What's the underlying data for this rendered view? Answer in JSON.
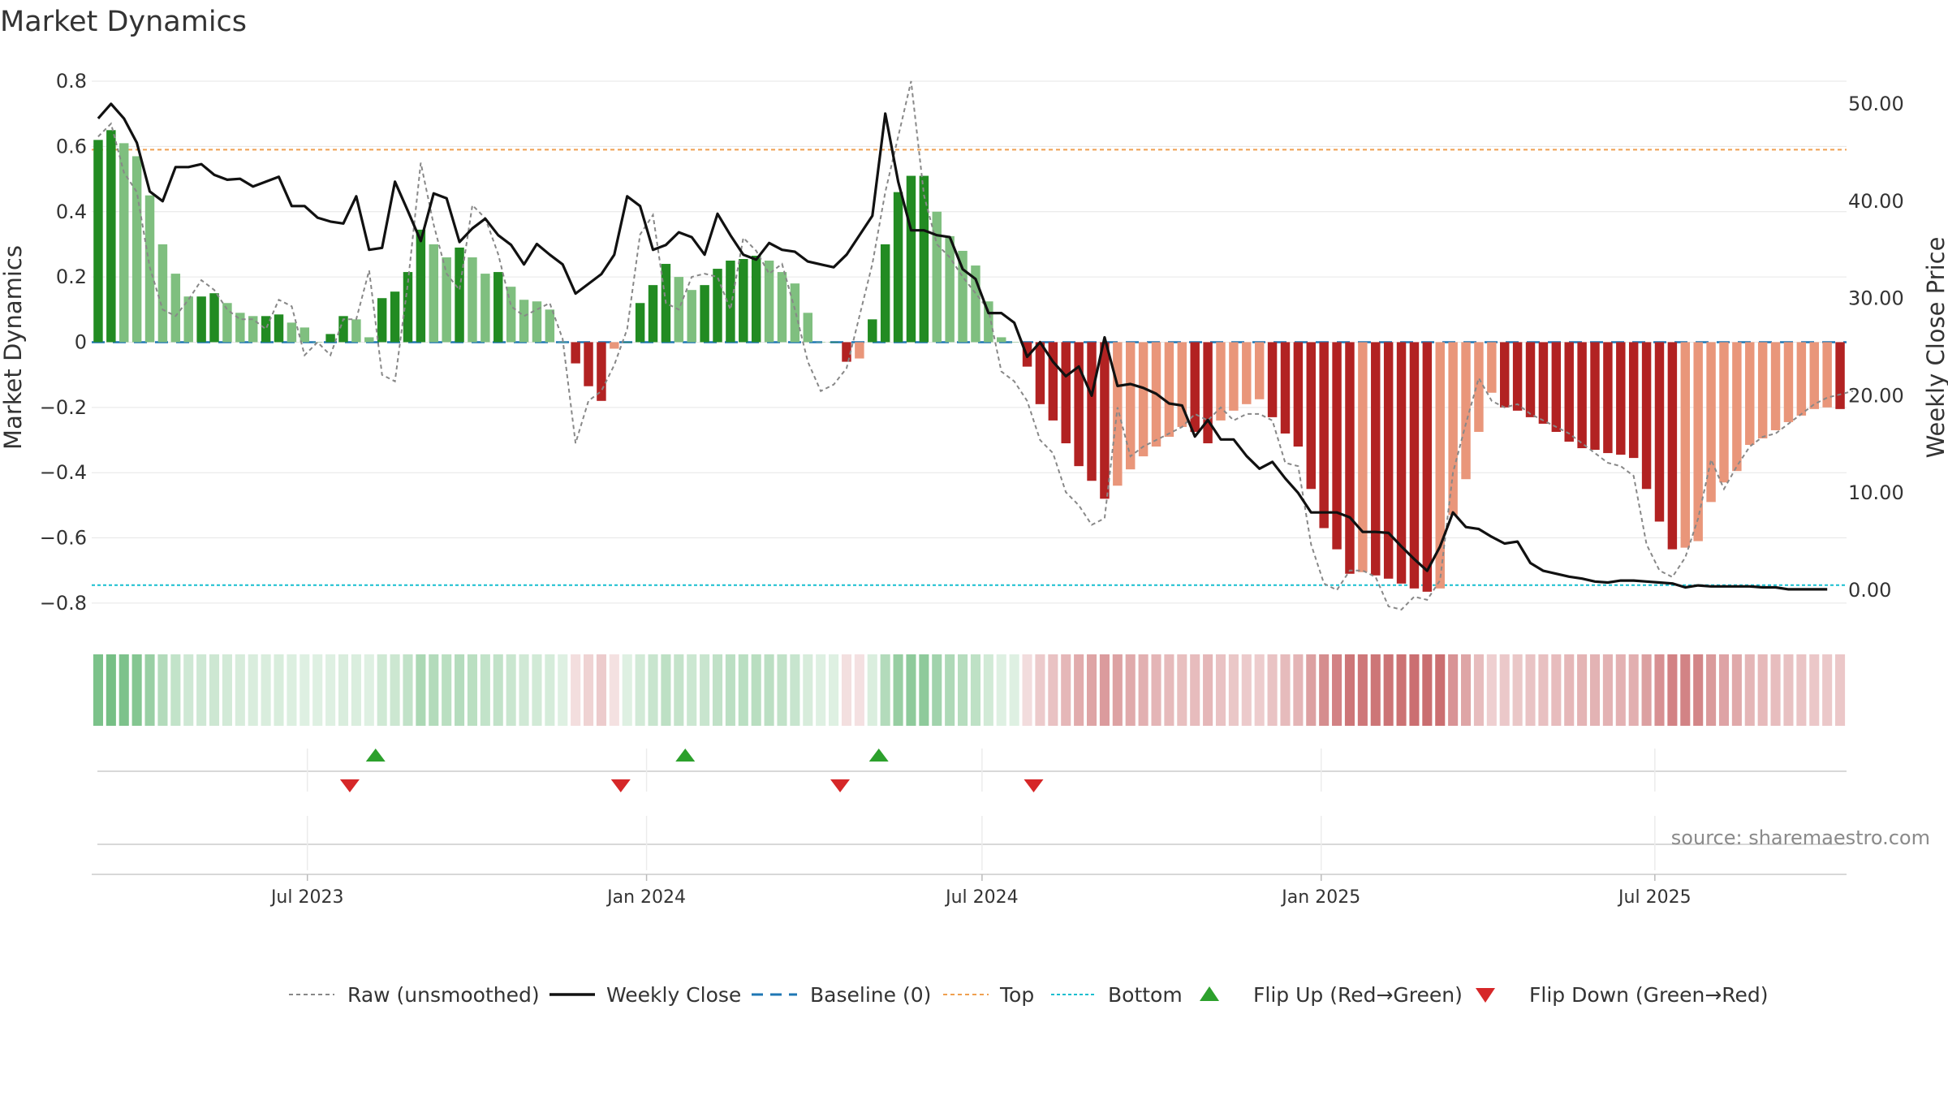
{
  "chart_data": {
    "type": "bar",
    "title": "Market Dynamics",
    "ylabel_left": "Market Dynamics",
    "ylabel_right": "Weekly Close Price",
    "y_left_lim": [
      -0.85,
      0.82
    ],
    "y_left_ticks": [
      "0.8",
      "0.6",
      "0.4",
      "0.2",
      "0",
      "−0.2",
      "−0.4",
      "−0.6",
      "−0.8"
    ],
    "y_left_tick_values": [
      0.8,
      0.6,
      0.4,
      0.2,
      0,
      -0.2,
      -0.4,
      -0.6,
      -0.8
    ],
    "y_right_lim": [
      -3,
      53
    ],
    "y_right_ticks": [
      "50.00",
      "40.00",
      "30.00",
      "20.00",
      "10.00",
      "0.00"
    ],
    "y_right_tick_values": [
      50,
      40,
      30,
      20,
      10,
      0
    ],
    "x_start": "2023-03-06",
    "x_end": "2025-10-13",
    "x_ticks": [
      "Jul 2023",
      "Jan 2024",
      "Jul 2024",
      "Jan 2025",
      "Jul 2025"
    ],
    "x_tick_dates": [
      "2023-07-01",
      "2024-01-01",
      "2024-07-01",
      "2025-01-01",
      "2025-07-01"
    ],
    "top_line": 0.59,
    "bottom_line": -0.745,
    "baseline": 0,
    "grid": true,
    "legend_position": "bottom",
    "source": "source: sharemaestro.com",
    "colors": {
      "strong_green": "#228b22",
      "light_green": "#7fbf7f",
      "strong_red": "#b22222",
      "light_red": "#e9967a",
      "weekly_close": "#111111",
      "raw": "#888888",
      "baseline": "#1f77b4",
      "top": "#f0a050",
      "bottom": "#17becf",
      "flip_up": "#2ca02c",
      "flip_down": "#d62728"
    },
    "market_dynamics": [
      0.62,
      0.65,
      0.61,
      0.57,
      0.45,
      0.3,
      0.21,
      0.14,
      0.14,
      0.15,
      0.12,
      0.09,
      0.08,
      0.08,
      0.085,
      0.06,
      0.045,
      0.0,
      0.025,
      0.08,
      0.07,
      0.015,
      0.135,
      0.155,
      0.215,
      0.345,
      0.3,
      0.26,
      0.29,
      0.26,
      0.21,
      0.215,
      0.17,
      0.13,
      0.125,
      0.1,
      0.0,
      -0.065,
      -0.135,
      -0.18,
      -0.02,
      0.0,
      0.12,
      0.175,
      0.24,
      0.2,
      0.16,
      0.175,
      0.225,
      0.25,
      0.255,
      0.265,
      0.25,
      0.215,
      0.18,
      0.09,
      0.0,
      0.0,
      -0.06,
      -0.05,
      0.07,
      0.3,
      0.46,
      0.51,
      0.51,
      0.4,
      0.325,
      0.28,
      0.235,
      0.125,
      0.015,
      0.0,
      -0.075,
      -0.19,
      -0.24,
      -0.31,
      -0.38,
      -0.425,
      -0.48,
      -0.44,
      -0.39,
      -0.35,
      -0.32,
      -0.29,
      -0.26,
      -0.275,
      -0.31,
      -0.24,
      -0.21,
      -0.19,
      -0.175,
      -0.23,
      -0.28,
      -0.32,
      -0.45,
      -0.57,
      -0.635,
      -0.71,
      -0.705,
      -0.715,
      -0.725,
      -0.74,
      -0.755,
      -0.765,
      -0.755,
      -0.53,
      -0.42,
      -0.275,
      -0.155,
      -0.2,
      -0.21,
      -0.23,
      -0.25,
      -0.275,
      -0.305,
      -0.325,
      -0.33,
      -0.34,
      -0.345,
      -0.355,
      -0.45,
      -0.55,
      -0.635,
      -0.63,
      -0.61,
      -0.49,
      -0.43,
      -0.395,
      -0.315,
      -0.295,
      -0.27,
      -0.245,
      -0.225,
      -0.205,
      -0.2,
      -0.205
    ],
    "raw_unsmoothed": [
      0.63,
      0.67,
      0.52,
      0.46,
      0.23,
      0.1,
      0.08,
      0.13,
      0.19,
      0.16,
      0.1,
      0.07,
      0.07,
      0.04,
      0.13,
      0.11,
      -0.04,
      0.0,
      -0.04,
      0.07,
      0.07,
      0.22,
      -0.1,
      -0.12,
      0.18,
      0.55,
      0.36,
      0.21,
      0.16,
      0.42,
      0.38,
      0.27,
      0.11,
      0.08,
      0.1,
      0.12,
      0.01,
      -0.31,
      -0.18,
      -0.15,
      -0.07,
      0.04,
      0.33,
      0.39,
      0.12,
      0.1,
      0.2,
      0.21,
      0.2,
      0.1,
      0.32,
      0.28,
      0.21,
      0.24,
      0.1,
      -0.06,
      -0.15,
      -0.13,
      -0.08,
      0.08,
      0.24,
      0.46,
      0.63,
      0.8,
      0.45,
      0.3,
      0.26,
      0.2,
      0.15,
      0.1,
      -0.09,
      -0.12,
      -0.18,
      -0.3,
      -0.34,
      -0.46,
      -0.5,
      -0.56,
      -0.54,
      -0.2,
      -0.35,
      -0.32,
      -0.3,
      -0.28,
      -0.26,
      -0.22,
      -0.24,
      -0.2,
      -0.24,
      -0.22,
      -0.22,
      -0.24,
      -0.37,
      -0.38,
      -0.62,
      -0.74,
      -0.76,
      -0.7,
      -0.7,
      -0.72,
      -0.81,
      -0.82,
      -0.78,
      -0.79,
      -0.73,
      -0.4,
      -0.25,
      -0.11,
      -0.18,
      -0.2,
      -0.19,
      -0.22,
      -0.24,
      -0.26,
      -0.28,
      -0.31,
      -0.34,
      -0.37,
      -0.38,
      -0.41,
      -0.62,
      -0.7,
      -0.72,
      -0.66,
      -0.54,
      -0.36,
      -0.45,
      -0.38,
      -0.32,
      -0.29,
      -0.28,
      -0.25,
      -0.22,
      -0.19,
      -0.17,
      -0.16,
      -0.15
    ],
    "weekly_close": [
      48.5,
      50.0,
      48.5,
      46.0,
      41.0,
      40.0,
      43.5,
      43.5,
      43.8,
      42.7,
      42.2,
      42.3,
      41.5,
      42.0,
      42.5,
      39.5,
      39.5,
      38.3,
      37.9,
      37.7,
      40.5,
      35.0,
      35.2,
      42.0,
      39.0,
      35.9,
      40.8,
      40.3,
      35.8,
      37.2,
      38.2,
      36.5,
      35.5,
      33.5,
      35.6,
      34.5,
      33.5,
      30.5,
      31.5,
      32.5,
      34.5,
      40.5,
      39.5,
      35.0,
      35.5,
      36.8,
      36.3,
      34.5,
      38.7,
      36.5,
      34.5,
      34.0,
      35.7,
      35.0,
      34.8,
      33.8,
      33.5,
      33.2,
      34.5,
      36.5,
      38.5,
      49.0,
      42.0,
      37.0,
      37.0,
      36.5,
      36.3,
      33.0,
      32.0,
      28.5,
      28.5,
      27.5,
      24.0,
      25.5,
      23.5,
      22.0,
      23.0,
      20.0,
      26.0,
      21.0,
      21.2,
      20.8,
      20.2,
      19.2,
      19.0,
      15.8,
      17.5,
      15.5,
      15.5,
      13.8,
      12.5,
      13.2,
      11.5,
      10.0,
      8.0,
      8.0,
      8.0,
      7.5,
      6.0,
      6.0,
      5.9,
      4.5,
      3.2,
      2.0,
      4.5,
      8.0,
      6.5,
      6.3,
      5.5,
      4.8,
      5.0,
      2.8,
      2.0,
      1.7,
      1.4,
      1.2,
      0.9,
      0.8,
      1.0,
      1.0,
      0.9,
      0.8,
      0.7,
      0.3,
      0.5,
      0.4,
      0.4,
      0.4,
      0.4,
      0.3,
      0.3,
      0.1,
      0.1,
      0.1,
      0.1
    ]
  },
  "flips": {
    "up_dates": [
      "2023-08-07",
      "2024-01-22",
      "2024-05-06"
    ],
    "down_dates": [
      "2023-07-24",
      "2023-12-18",
      "2024-04-15",
      "2024-07-29"
    ]
  },
  "legend": [
    {
      "label": "Raw (unsmoothed)",
      "key": "raw"
    },
    {
      "label": "Weekly Close",
      "key": "close"
    },
    {
      "label": "Baseline (0)",
      "key": "baseline"
    },
    {
      "label": "Top",
      "key": "top"
    },
    {
      "label": "Bottom",
      "key": "bottom"
    },
    {
      "label": "Flip Up (Red→Green)",
      "key": "flip_up"
    },
    {
      "label": "Flip Down (Green→Red)",
      "key": "flip_down"
    }
  ]
}
